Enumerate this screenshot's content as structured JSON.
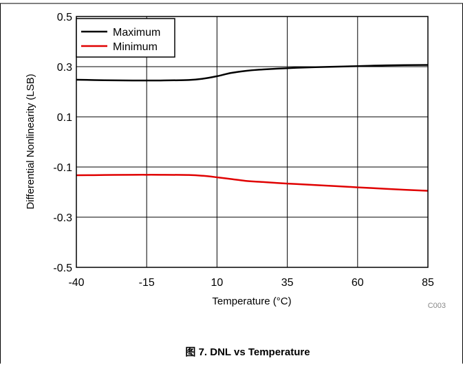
{
  "figure": {
    "caption": "图 7. DNL vs Temperature",
    "code": "C003"
  },
  "chart_data": {
    "type": "line",
    "xlabel": "Temperature (°C)",
    "ylabel": "Differential Nonlinearity (LSB)",
    "xlim": [
      -40,
      85
    ],
    "ylim": [
      -0.5,
      0.5
    ],
    "x_ticks": [
      -40,
      -15,
      10,
      35,
      60,
      85
    ],
    "y_ticks": [
      -0.5,
      -0.3,
      -0.1,
      0.1,
      0.3,
      0.5
    ],
    "x_tick_labels": [
      "-40",
      "-15",
      "10",
      "35",
      "60",
      "85"
    ],
    "y_tick_labels": [
      "-0.5",
      "-0.3",
      "-0.1",
      "0.1",
      "0.3",
      "0.5"
    ],
    "grid": true,
    "legend_position": "top-left",
    "series": [
      {
        "name": "Maximum",
        "color": "#000000",
        "x": [
          -40,
          -30,
          -20,
          -15,
          -10,
          0,
          5,
          10,
          15,
          20,
          25,
          35,
          45,
          60,
          70,
          85
        ],
        "y": [
          0.248,
          0.246,
          0.245,
          0.245,
          0.245,
          0.247,
          0.252,
          0.262,
          0.275,
          0.283,
          0.288,
          0.294,
          0.298,
          0.302,
          0.305,
          0.307
        ]
      },
      {
        "name": "Minimum",
        "color": "#e00000",
        "x": [
          -40,
          -30,
          -20,
          -15,
          -10,
          0,
          5,
          10,
          15,
          20,
          25,
          35,
          45,
          60,
          70,
          85
        ],
        "y": [
          -0.133,
          -0.132,
          -0.131,
          -0.131,
          -0.131,
          -0.132,
          -0.135,
          -0.141,
          -0.148,
          -0.155,
          -0.159,
          -0.166,
          -0.172,
          -0.181,
          -0.187,
          -0.195
        ]
      }
    ]
  }
}
